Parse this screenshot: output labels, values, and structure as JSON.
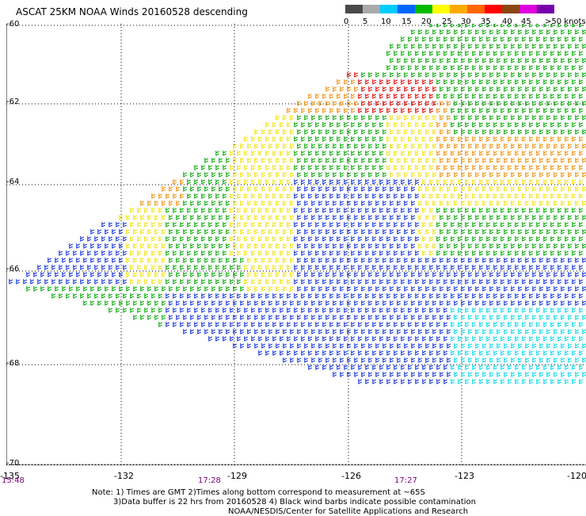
{
  "title": "ASCAT 25KM NOAA Winds 20160528 descending",
  "legend": {
    "labels": [
      "0",
      "5",
      "10",
      "15",
      "20",
      "25",
      "30",
      "35",
      "40",
      "45",
      ">50 knots"
    ],
    "colors": [
      "#4a4a4a",
      "#aaaaaa",
      "#00ccff",
      "#0066ff",
      "#00bb00",
      "#ffff00",
      "#ffaa00",
      "#ff6600",
      "#ff0000",
      "#8b4513",
      "#dd00dd",
      "#7700aa"
    ]
  },
  "lat_labels": [
    "-60",
    "-62",
    "-64",
    "-66",
    "-68",
    "-70"
  ],
  "lon_labels": [
    "-135",
    "-132",
    "-129",
    "-126",
    "-123",
    "-120"
  ],
  "time_labels": [
    "15:48",
    "17:28",
    "17:27"
  ],
  "notes": [
    "Note: 1) Times are GMT 2)Times along bottom correspond to measurement at ~65S",
    "3)Data buffer is 22 hrs from 20160528 4) Black wind barbs indicate possible contamination",
    "NOAA/NESDIS/Center for Satellite Applications and Research"
  ]
}
